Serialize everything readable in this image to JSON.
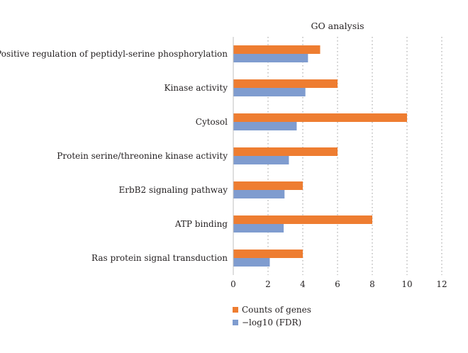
{
  "chart_data": {
    "type": "bar",
    "orientation": "horizontal",
    "title": "GO analysis",
    "xlabel": "",
    "ylabel": "",
    "xlim": [
      0,
      12
    ],
    "x_ticks": [
      0,
      2,
      4,
      6,
      8,
      10,
      12
    ],
    "grid": "vertical dotted",
    "legend_position": "bottom-center",
    "categories": [
      "Positive regulation of peptidyl-serine phosphorylation",
      "Kinase activity",
      "Cytosol",
      "Protein serine/threonine kinase activity",
      "ErbB2 signaling pathway",
      "ATP binding",
      "Ras protein signal transduction"
    ],
    "series": [
      {
        "name": "Counts of genes",
        "color": "#ee7d31",
        "values": [
          5,
          6,
          10,
          6,
          4,
          8,
          4
        ]
      },
      {
        "name": "−log10 (FDR)",
        "color": "#7f9ccf",
        "values": [
          4.3,
          4.15,
          3.65,
          3.2,
          2.95,
          2.9,
          2.1
        ]
      }
    ]
  }
}
